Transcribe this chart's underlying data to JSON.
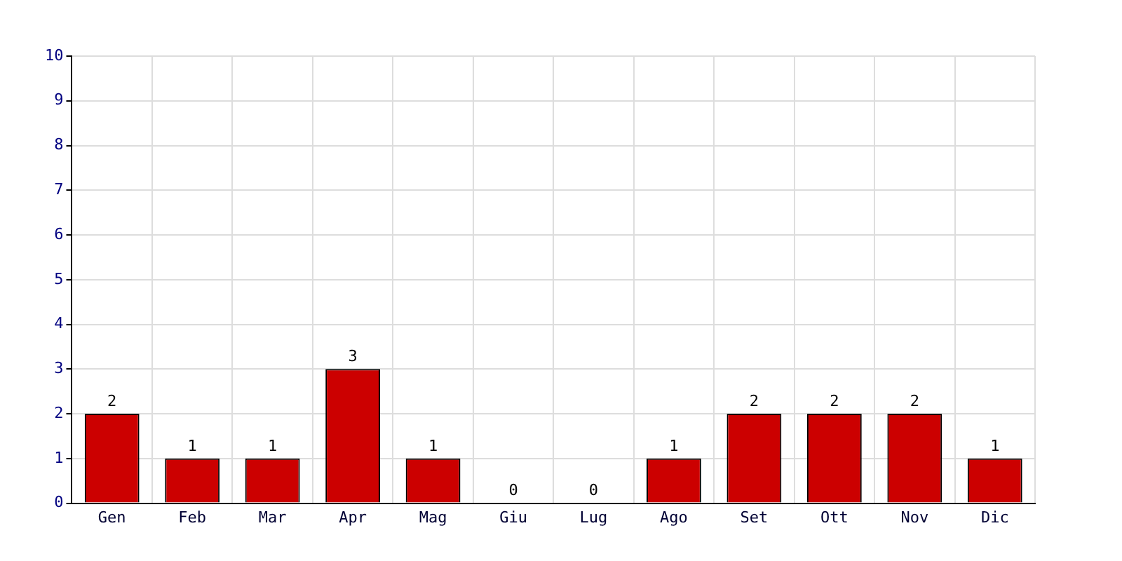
{
  "chart_data": {
    "type": "bar",
    "categories": [
      "Gen",
      "Feb",
      "Mar",
      "Apr",
      "Mag",
      "Giu",
      "Lug",
      "Ago",
      "Set",
      "Ott",
      "Nov",
      "Dic"
    ],
    "values": [
      2,
      1,
      1,
      3,
      1,
      0,
      0,
      1,
      2,
      2,
      2,
      1
    ],
    "color": "#cc0000",
    "ylim": [
      0,
      10
    ],
    "yticks": [
      0,
      1,
      2,
      3,
      4,
      5,
      6,
      7,
      8,
      9,
      10
    ],
    "grid": true,
    "data_labels": true,
    "legend": false
  }
}
